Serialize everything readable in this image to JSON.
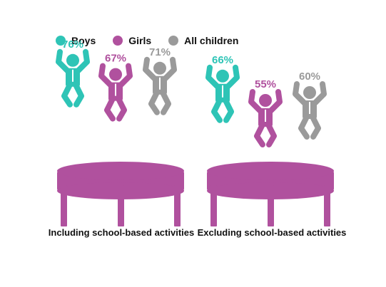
{
  "chart_data": {
    "type": "bar",
    "categories": [
      "Including school-based activities",
      "Excluding school-based activities"
    ],
    "series": [
      {
        "name": "Boys",
        "values": [
          76,
          66
        ],
        "color": "#2ec4b6"
      },
      {
        "name": "Girls",
        "values": [
          67,
          55
        ],
        "color": "#b0519e"
      },
      {
        "name": "All children",
        "values": [
          71,
          60
        ],
        "color": "#9a9a9a"
      }
    ],
    "value_suffix": "%",
    "legend_position": "top-left",
    "trampoline_color": "#b0519e",
    "icon": "jumping-child-icon"
  }
}
